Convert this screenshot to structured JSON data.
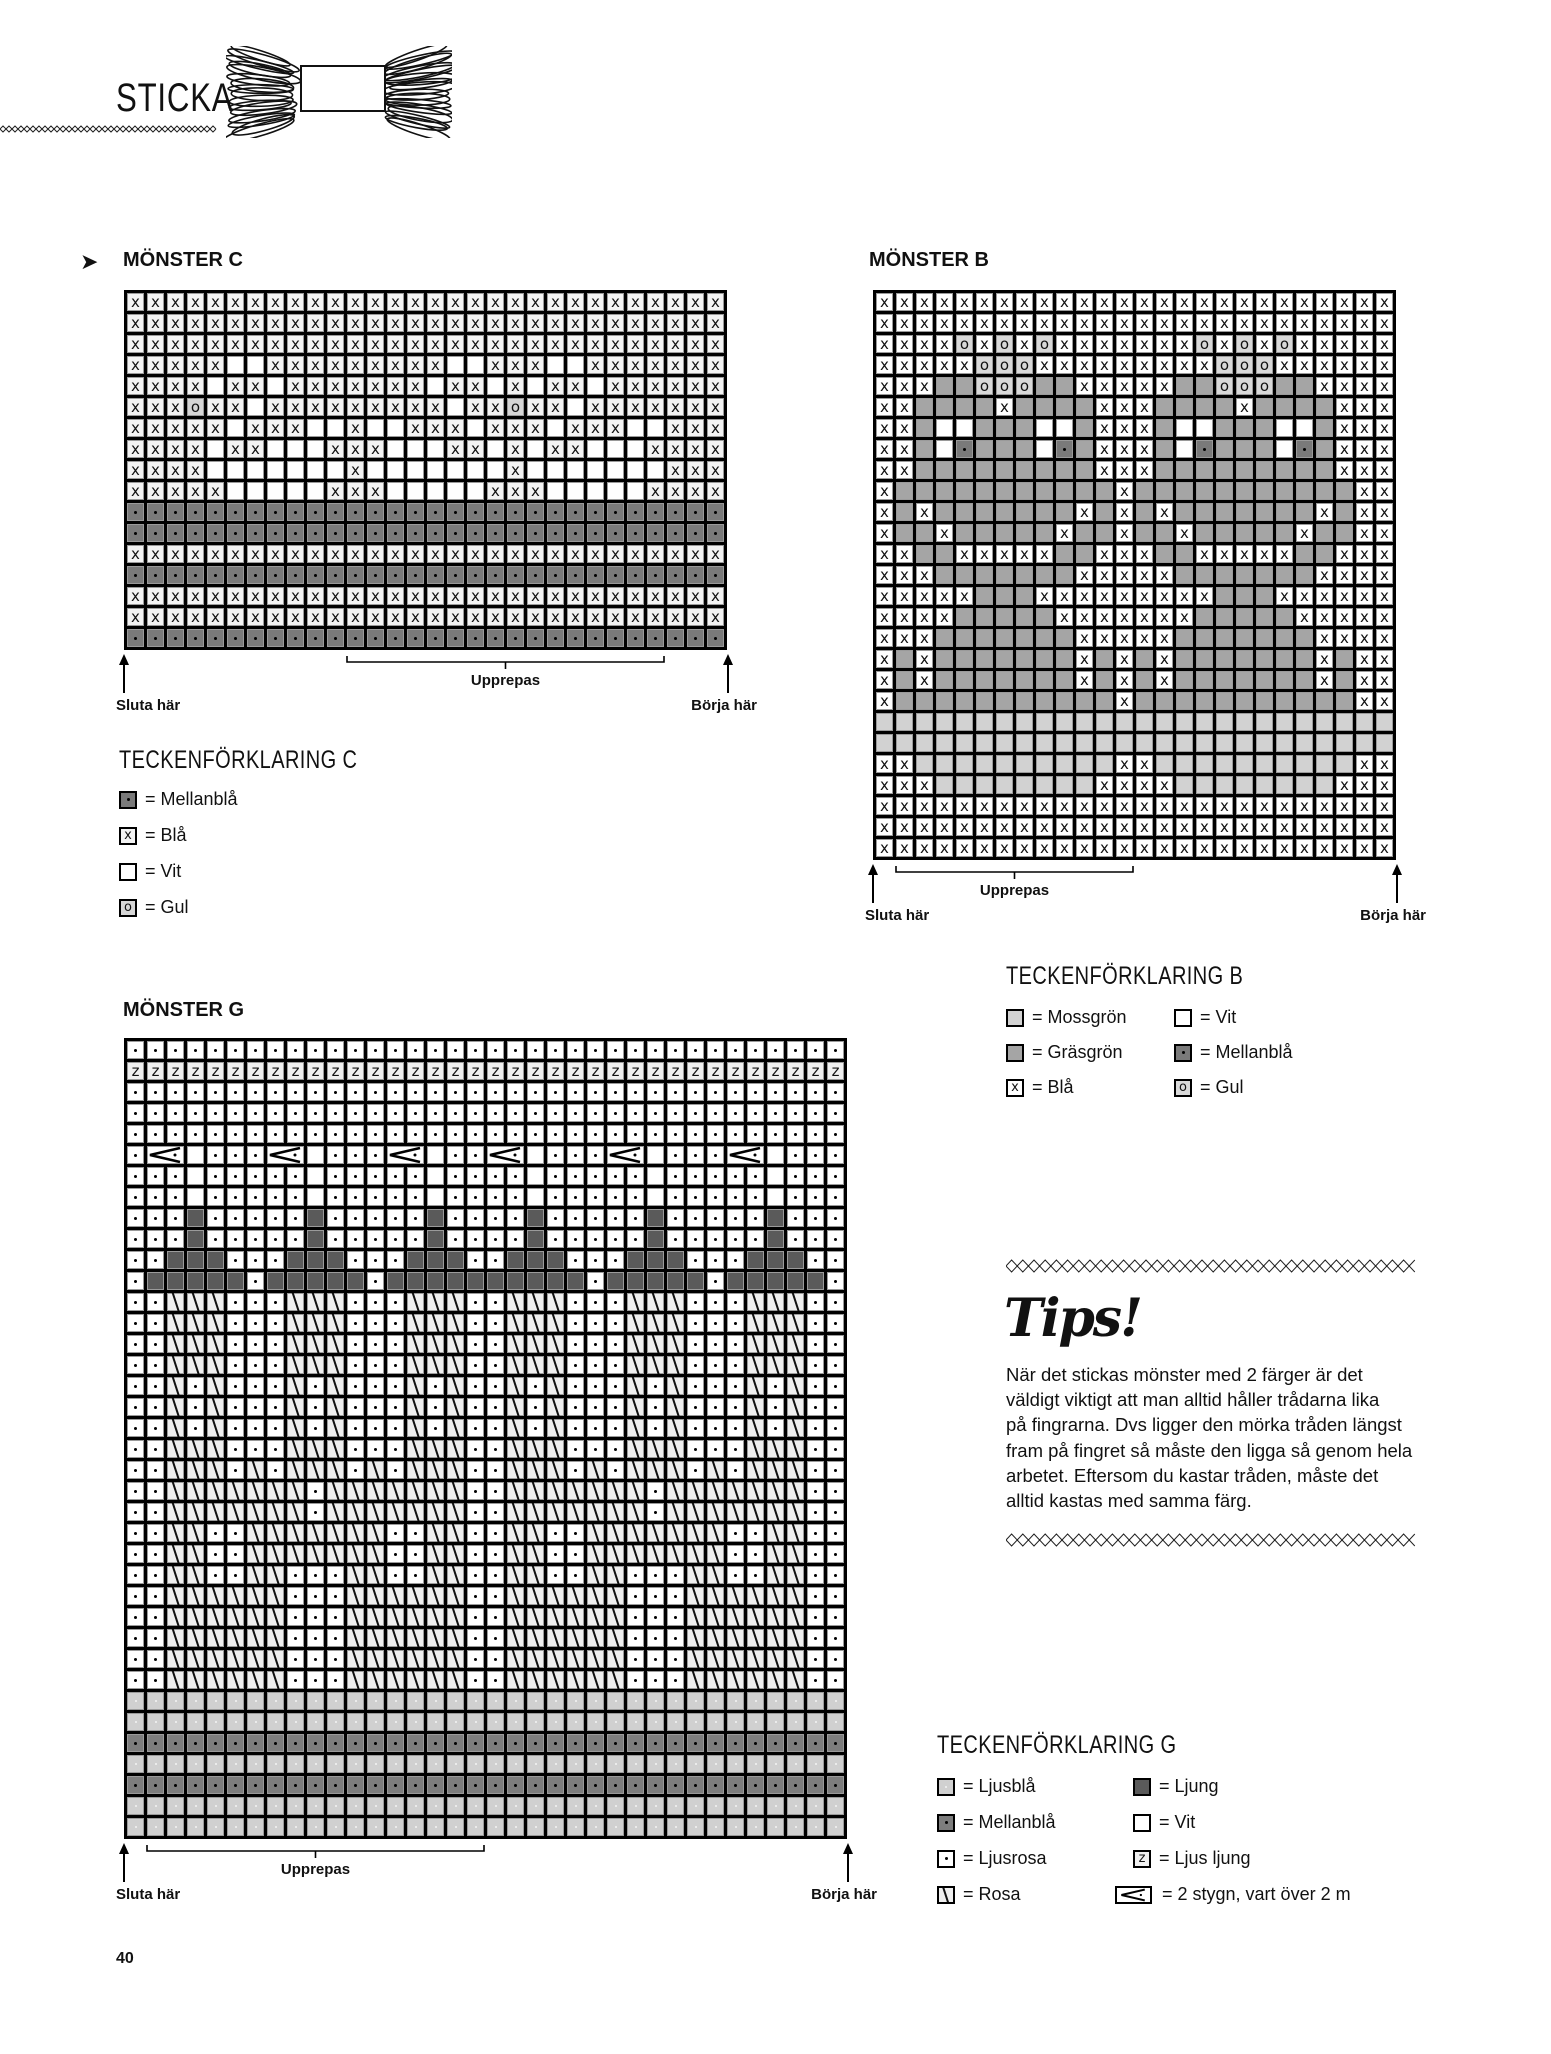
{
  "header": {
    "section_title": "STICKA"
  },
  "charts": {
    "C": {
      "title": "MÖNSTER C",
      "repeat_label": "Upprepas",
      "end_label": "Sluta här",
      "start_label": "Börja här",
      "repeat_cols": [
        12,
        27
      ],
      "rows": [
        "xxxxxxxxxxxxxxxxxxxxxxxxxxxxxx",
        "xxxxxxxxxxxxxxxxxxxxxxxxxxxxxx",
        "xxxxxxxxxxxxxxxxxxxxxxxxxxxxxx",
        "xxxxxwwxxxxxxxxxwwxxxwwxxxxxxx",
        "xxxxwxxwxxxxxxxwxxwxwxxwxxxxxx",
        "xxxoxxwxxxxxxxxxwxxoxxwxxxxxxx",
        "xxxxxwxxxwwxwwxxxwxxxwxxxwwxxx",
        "xxxxwxxwwwxxxwwwxxwxwxxwwwxxxx",
        "xxxxwwwwwwwxwwwwwwwxwwwwwwwxxx",
        "xxxxxwwwwwxxxwwwwwxxxwwwwwxxxx",
        "mmmmmmmmmmmmmmmmmmmmmmmmmmmmmm",
        "mmmmmmmmmmmmmmmmmmmmmmmmmmmmmm",
        "xxxxxxxxxxxxxxxxxxxxxxxxxxxxxx",
        "mmmmmmmmmmmmmmmmmmmmmmmmmmmmmm",
        "xxxxxxxxxxxxxxxxxxxxxxxxxxxxxx",
        "xxxxxxxxxxxxxxxxxxxxxxxxxxxxxx",
        "mmmmmmmmmmmmmmmmmmmmmmmmmmmmmm"
      ],
      "key": {
        "x": {
          "fill": "#f3f3f3",
          "glyph": "x"
        },
        "w": {
          "fill": "#ffffff",
          "glyph": ""
        },
        "o": {
          "fill": "#d6d6d6",
          "glyph": "o"
        },
        "m": {
          "fill": "#7a7a7a",
          "glyph": "dot"
        }
      },
      "legend_title": "TECKENFÖRKLARING C",
      "legend": [
        {
          "code": "m",
          "label": "= Mellanblå"
        },
        {
          "code": "x",
          "label": "= Blå"
        },
        {
          "code": "w",
          "label": "= Vit"
        },
        {
          "code": "o",
          "label": "= Gul"
        }
      ]
    },
    "B": {
      "title": "MÖNSTER B",
      "repeat_label": "Upprepas",
      "end_label": "Sluta här",
      "start_label": "Börja här",
      "repeat_cols": [
        2,
        13
      ],
      "rows": [
        "xxxxxxxxxxxxxxxxxxxxxxxxxx",
        "xxxxxxxxxxxxxxxxxxxxxxxxxx",
        "xxxxoxoxoxxxxxxxoxoxoxxxxx",
        "xxxxxoooxxxxxxxxxoooxxxxxx",
        "xxxggoooggxxxxxggoooggxxxx",
        "xxggggxggggxxxggggxggggxxx",
        "xxgwwgggwwgxxxgwwgggwwgxxx",
        "xxgwdgggwdgxxxgwdgggwdgxxx",
        "xxgggggggggxxxgggggggggxxx",
        "xgggggggggggxgggggggggggxx",
        "xgxgggggggxgxgxgggggggxgxx",
        "xggxgggggxggxggxgggggxggxx",
        "xxggxxxxxggxxxggxxxxxggxxx",
        "xxxgggggggxxxxxgggggggxxxx",
        "xxxxxgggxxxxxxxxxgggxxxxxx",
        "xxxxgggggxxxxxxxgggggxxxxx",
        "xxxgggggggxxxxxgggggggxxxx",
        "xgxgggggggxgxgxgggggggxgxx",
        "xgxgggggggxgxgxgggggggxgxx",
        "xgggggggggggxgggggggggggxx",
        "mmmmmmmmmmmmmmmmmmmmmmmmmm",
        "mmmmmmmmmmmmmmmmmmmmmmmmmm",
        "xxmmmmmmmmmmxxmmmmmmmmmmxx",
        "xxxmmmmmmmmxxxxmmmmmmmmxxx",
        "xxxxxxxxxxxxxxxxxxxxxxxxxx",
        "xxxxxxxxxxxxxxxxxxxxxxxxxx",
        "xxxxxxxxxxxxxxxxxxxxxxxxxx"
      ],
      "key": {
        "x": {
          "fill": "#ffffff",
          "glyph": "x"
        },
        "g": {
          "fill": "#a5a5a5",
          "glyph": ""
        },
        "m": {
          "fill": "#d2d2d2",
          "glyph": ""
        },
        "w": {
          "fill": "#ffffff",
          "glyph": ""
        },
        "o": {
          "fill": "#d9d9d9",
          "glyph": "o"
        },
        "d": {
          "fill": "#7a7a7a",
          "glyph": "dot"
        }
      },
      "legend_title": "TECKENFÖRKLARING B",
      "legend": [
        {
          "code": "m",
          "label": "= Mossgrön"
        },
        {
          "code": "g",
          "label": "= Gräsgrön"
        },
        {
          "code": "x",
          "label": "= Blå"
        },
        {
          "code": "w",
          "label": "= Vit"
        },
        {
          "code": "d",
          "label": "= Mellanblå"
        },
        {
          "code": "o",
          "label": "= Gul"
        }
      ]
    },
    "G": {
      "title": "MÖNSTER G",
      "repeat_label": "Upprepas",
      "end_label": "Sluta här",
      "start_label": "Börja här",
      "repeat_cols": [
        2,
        18
      ],
      "rows": [
        "pppppppppppppppppppppppppppppppppppp",
        "zzzzzzzzzzzzzzzzzzzzzzzzzzzzzzzzzzzz",
        "pppppppppppppppppppppppppppppppppppp",
        "pppppppppppppppppppppppppppppppppppp",
        "pppppppppppppppppppppppppppppppppppp",
        "pKkwpppKkwpppKkwppKkwpppKkwpppKkwppp",
        "pppwpppppwpppppwppppwpppppwpppppwppp",
        "pppwpppppwpppppwppppwpppppwpppppwppp",
        "pppLpppppLpppppLppppLpppppLpppppLppp",
        "pppLpppppLpppppLppppLpppppLpppppLppp",
        "ppLLLpppLLLpppLLLppLLLpppLLLpppLLLpp",
        "pLLLLLpLLLLLpLLLLLLLLLLpLLLLLpLLLLLp",
        "pprrrppprrrppprrrpprrrppprrrppprrrpp",
        "pprrrppprrrppprrrpprrrppprrrppprrrpp",
        "pprrrppprrrppprrrpprrrppprrrppprrrpp",
        "pprrrppprrrppprrrpprrrppprrrppprrrpp",
        "pprprppprprppprprpprprppprprppprprpp",
        "pprprppprprppprprpprprppprprppprprpp",
        "pprprppprprppprprpprprppprprppprprpp",
        "pprrrppprrrppprrrpprrrppprrrppprrrpp",
        "pprrrprprrrprprrrpprrrprprrrprprrrpp",
        "pprrrrrrrprrrrrrrpprrrrrrrprrrrrrrpp",
        "pprrrrrrrprrrrrrrpprrrrrrrprrrrrrrpp",
        "pprrpprrrrrrrpprrpprrpprrrrrrrpprrpp",
        "pprrpprrrrrrrpprrpprrpprrrrrrrpprrpp",
        "pprrpprrppprrpprrpprrpprrppprrpprrpp",
        "pprrrrrrppprrrrrrpprrrrrrppprrrrrrpp",
        "pprrrrrrppprrrrrrpprrrrrrppprrrrrrpp",
        "pprrrrrrppprrrrrrpprrrrrrppprrrrrrpp",
        "pprrrrrrppprrrrrrpprrrrrrppprrrrrrpp",
        "pprrrrrrppprrrrrrpprrrrrrppprrrrrrpp",
        "bbbbbbbbbbbbbbbbbbbbbbbbbbbbbbbbbbbb",
        "bbbbbbbbbbbbbbbbbbbbbbbbbbbbbbbbbbbb",
        "MMMMMMMMMMMMMMMMMMMMMMMMMMMMMMMMMMMM",
        "bbbbbbbbbbbbbbbbbbbbbbbbbbbbbbbbbbbb",
        "MMMMMMMMMMMMMMMMMMMMMMMMMMMMMMMMMMMM",
        "bbbbbbbbbbbbbbbbbbbbbbbbbbbbbbbbbbbb",
        "bbbbbbbbbbbbbbbbbbbbbbbbbbbbbbbbbbbb"
      ],
      "key": {
        "p": {
          "fill": "#ffffff",
          "glyph": "dot"
        },
        "z": {
          "fill": "#f0f0f0",
          "glyph": "z"
        },
        "w": {
          "fill": "#ffffff",
          "glyph": ""
        },
        "L": {
          "fill": "#5a5a5a",
          "glyph": ""
        },
        "r": {
          "fill": "#efefef",
          "glyph": "slash"
        },
        "b": {
          "fill": "#d0d0d0",
          "glyph": "lightdot"
        },
        "M": {
          "fill": "#7d7d7d",
          "glyph": "dot"
        },
        "K": {
          "fill": "#ffffff",
          "glyph": "two-stitch-cross"
        }
      },
      "legend_title": "TECKENFÖRKLARING G",
      "legend": [
        {
          "code": "b",
          "label": "= Ljusblå"
        },
        {
          "code": "M",
          "label": "= Mellanblå"
        },
        {
          "code": "p",
          "label": "= Ljusrosa"
        },
        {
          "code": "r",
          "label": "= Rosa"
        },
        {
          "code": "L",
          "label": "= Ljung"
        },
        {
          "code": "w",
          "label": "= Vit"
        },
        {
          "code": "z",
          "label": "= Ljus ljung"
        },
        {
          "code": "K",
          "label": "= 2 stygn, vart över 2 m"
        }
      ]
    }
  },
  "tips": {
    "heading": "Tips!",
    "body": "När det stickas mönster med 2 färger är det\nväldigt viktigt att man alltid håller trådarna lika\npå fingrarna. Dvs ligger den mörka tråden längst\nfram på fingret så måste den ligga så genom hela\narbetet. Eftersom du kastar tråden, måste det\nalltid kastas med samma färg."
  },
  "icons": {
    "pointer": "arrow-pointer-icon",
    "yarn": "yarn-skein-icon"
  },
  "page_number": "40"
}
